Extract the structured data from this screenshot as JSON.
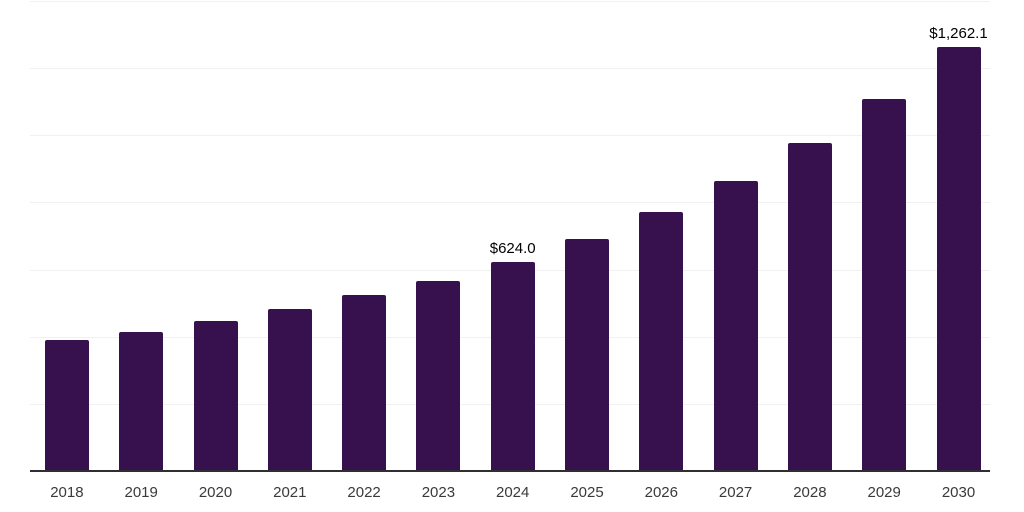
{
  "chart_data": {
    "type": "bar",
    "title": "",
    "xlabel": "",
    "ylabel": "",
    "categories": [
      "2018",
      "2019",
      "2020",
      "2021",
      "2022",
      "2023",
      "2024",
      "2025",
      "2026",
      "2027",
      "2028",
      "2029",
      "2030"
    ],
    "values": [
      390,
      415,
      448,
      482,
      525,
      566,
      624.0,
      690,
      771,
      864,
      978,
      1108,
      1262.1
    ],
    "data_labels": [
      "",
      "",
      "",
      "",
      "",
      "",
      "$624.0",
      "",
      "",
      "",
      "",
      "",
      "$1,262.1"
    ],
    "ylim": [
      0,
      1400
    ],
    "gridline_step": 200,
    "grid": true,
    "legend": false
  },
  "style": {
    "background": "#ffffff",
    "bar_color": "#36114d",
    "gridline_color": "#f1f1f1",
    "axis_line_color": "#2f2f2f",
    "tick_label_color": "#3a3a3a",
    "data_label_color": "#000000"
  }
}
